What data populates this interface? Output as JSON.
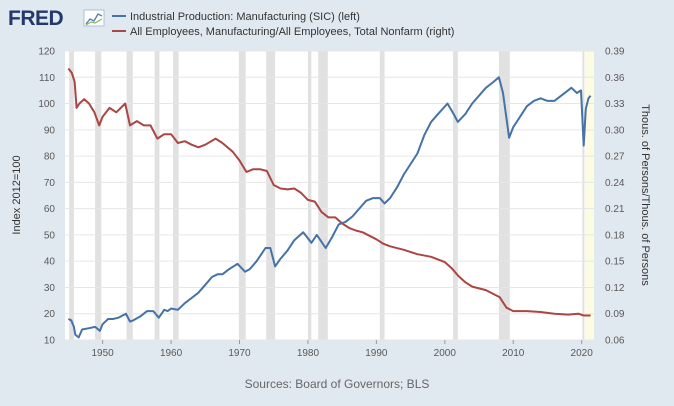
{
  "header": {
    "logo_text": "FRED",
    "logo_icon": "fred-line-chart-icon"
  },
  "chart_data": {
    "type": "line",
    "colors": {
      "background": "#e1e9f0",
      "plot": "#ffffff",
      "left_series": "#4572a7",
      "right_series": "#aa4643",
      "recession": "#e1e1e1",
      "preliminary": "#fdfbe1"
    },
    "xlim": [
      1944.5,
      2021.8
    ],
    "x_ticks": [
      "1950",
      "1960",
      "1970",
      "1980",
      "1990",
      "2000",
      "2010",
      "2020"
    ],
    "y_left": {
      "label": "Index 2012=100",
      "ylim": [
        10,
        120
      ],
      "ticks": [
        "10",
        "20",
        "30",
        "40",
        "50",
        "60",
        "70",
        "80",
        "90",
        "100",
        "110",
        "120"
      ]
    },
    "y_right": {
      "label": "Thous. of Persons/Thous. of Persons",
      "ylim": [
        0.06,
        0.39
      ],
      "ticks": [
        "0.06",
        "0.09",
        "0.12",
        "0.15",
        "0.18",
        "0.21",
        "0.24",
        "0.27",
        "0.30",
        "0.33",
        "0.36",
        "0.39"
      ]
    },
    "recessions": [
      [
        1945.1,
        1945.8
      ],
      [
        1948.9,
        1949.8
      ],
      [
        1953.5,
        1954.4
      ],
      [
        1957.6,
        1958.3
      ],
      [
        1960.3,
        1961.1
      ],
      [
        1969.9,
        1970.9
      ],
      [
        1973.9,
        1975.2
      ],
      [
        1980.0,
        1980.5
      ],
      [
        1981.5,
        1982.9
      ],
      [
        1990.5,
        1991.2
      ],
      [
        2001.2,
        2001.9
      ],
      [
        2007.9,
        2009.5
      ],
      [
        2020.1,
        2020.4
      ]
    ],
    "preliminary_band": [
      2020.5,
      2021.8
    ],
    "series": [
      {
        "name": "Industrial Production: Manufacturing (SIC) (left)",
        "axis": "left",
        "x": [
          1945.0,
          1945.4,
          1945.8,
          1946.0,
          1946.5,
          1947.0,
          1948.0,
          1948.9,
          1949.6,
          1950.0,
          1950.8,
          1951.5,
          1952.3,
          1953.4,
          1954.0,
          1954.5,
          1955.5,
          1956.5,
          1957.4,
          1958.2,
          1959.0,
          1959.5,
          1960.0,
          1961.0,
          1962.0,
          1963.0,
          1964.0,
          1965.0,
          1966.0,
          1966.8,
          1967.5,
          1968.5,
          1969.7,
          1970.8,
          1971.5,
          1972.5,
          1973.8,
          1974.5,
          1975.2,
          1976.0,
          1977.0,
          1978.0,
          1979.3,
          1980.5,
          1981.3,
          1982.6,
          1983.5,
          1984.5,
          1985.5,
          1986.5,
          1987.5,
          1988.5,
          1989.5,
          1990.5,
          1991.2,
          1992.0,
          1993.0,
          1994.0,
          1995.0,
          1996.0,
          1997.0,
          1998.0,
          1999.0,
          2000.4,
          2001.3,
          2001.9,
          2003.0,
          2004.0,
          2005.0,
          2006.0,
          2007.0,
          2007.9,
          2008.5,
          2009.4,
          2010.0,
          2011.0,
          2012.0,
          2013.0,
          2014.0,
          2015.0,
          2016.0,
          2017.0,
          2018.5,
          2019.3,
          2019.9,
          2020.3,
          2020.6,
          2021.0,
          2021.3
        ],
        "values": [
          18,
          17.5,
          15,
          12,
          11,
          14,
          14.5,
          15,
          13.5,
          16,
          18,
          18,
          18.5,
          20,
          17,
          17.5,
          19,
          21,
          21,
          18.5,
          21.5,
          21,
          22,
          21.5,
          24,
          26,
          28,
          31,
          34,
          35,
          35,
          37,
          39,
          36,
          37,
          40,
          45,
          45,
          38,
          41,
          44,
          48,
          51,
          47,
          50,
          45,
          49,
          54,
          55,
          57,
          60,
          63,
          64,
          64,
          62,
          64,
          68,
          73,
          77,
          81,
          88,
          93,
          96,
          100,
          96,
          93,
          96,
          100,
          103,
          106,
          108,
          110,
          104,
          87,
          91,
          95,
          99,
          101,
          102,
          101,
          101,
          103,
          106,
          104,
          105,
          84,
          98,
          102,
          103
        ]
      },
      {
        "name": "All Employees, Manufacturing/All Employees, Total Nonfarm (right)",
        "axis": "right",
        "x": [
          1945.0,
          1945.5,
          1945.9,
          1946.2,
          1946.6,
          1947.3,
          1948.0,
          1948.8,
          1949.5,
          1950.0,
          1951.0,
          1952.0,
          1953.3,
          1954.0,
          1955.0,
          1956.0,
          1957.0,
          1958.0,
          1959.0,
          1960.0,
          1961.0,
          1962.0,
          1963.0,
          1964.0,
          1965.0,
          1966.5,
          1967.5,
          1969.0,
          1970.0,
          1971.0,
          1972.0,
          1973.0,
          1974.0,
          1975.0,
          1976.0,
          1977.0,
          1978.0,
          1979.0,
          1980.0,
          1981.0,
          1982.0,
          1983.0,
          1984.0,
          1985.0,
          1986.0,
          1987.0,
          1988.0,
          1989.0,
          1990.0,
          1991.0,
          1992.0,
          1994.0,
          1996.0,
          1998.0,
          2000.0,
          2001.0,
          2002.0,
          2003.0,
          2004.0,
          2006.0,
          2007.0,
          2008.0,
          2009.0,
          2010.0,
          2012.0,
          2014.0,
          2016.0,
          2018.0,
          2019.5,
          2020.3,
          2020.6,
          2021.3
        ],
        "values": [
          0.37,
          0.365,
          0.355,
          0.325,
          0.33,
          0.335,
          0.33,
          0.32,
          0.305,
          0.315,
          0.325,
          0.32,
          0.33,
          0.305,
          0.31,
          0.305,
          0.305,
          0.29,
          0.295,
          0.295,
          0.285,
          0.287,
          0.283,
          0.28,
          0.283,
          0.29,
          0.285,
          0.275,
          0.265,
          0.252,
          0.255,
          0.255,
          0.253,
          0.237,
          0.233,
          0.232,
          0.233,
          0.228,
          0.22,
          0.218,
          0.206,
          0.2,
          0.2,
          0.193,
          0.188,
          0.185,
          0.183,
          0.179,
          0.175,
          0.17,
          0.167,
          0.163,
          0.158,
          0.155,
          0.149,
          0.142,
          0.133,
          0.126,
          0.121,
          0.117,
          0.113,
          0.109,
          0.097,
          0.093,
          0.093,
          0.092,
          0.09,
          0.089,
          0.09,
          0.088,
          0.088,
          0.088
        ]
      }
    ],
    "source": "Sources: Board of Governors; BLS"
  }
}
